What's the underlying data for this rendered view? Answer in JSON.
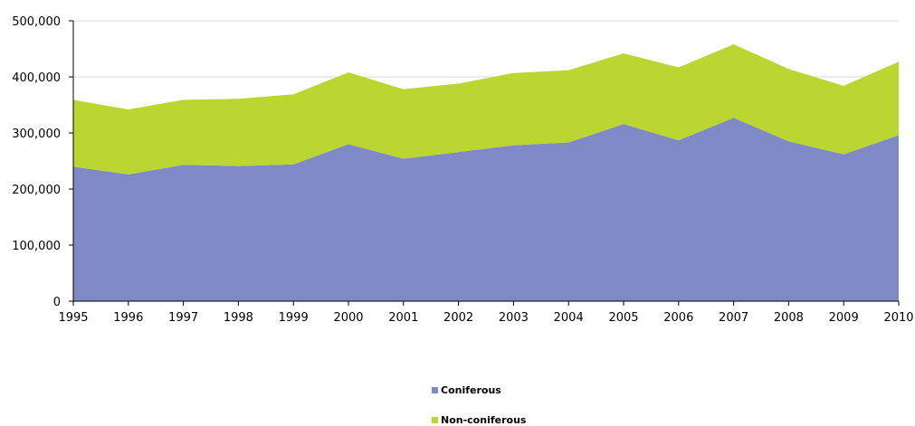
{
  "chart_data": {
    "type": "area",
    "stacked": true,
    "x": [
      "1995",
      "1996",
      "1997",
      "1998",
      "1999",
      "2000",
      "2001",
      "2002",
      "2003",
      "2004",
      "2005",
      "2006",
      "2007",
      "2008",
      "2009",
      "2010"
    ],
    "series": [
      {
        "name": "Coniferous",
        "color": "#7f89c5",
        "values": [
          240000,
          226000,
          243000,
          241000,
          244000,
          280000,
          254000,
          266000,
          278000,
          283000,
          316000,
          287000,
          327000,
          285000,
          262000,
          296000
        ]
      },
      {
        "name": "Non-coniferous",
        "color": "#bcd631",
        "values": [
          119000,
          116000,
          116000,
          120000,
          125000,
          128000,
          124000,
          122000,
          129000,
          129000,
          126000,
          130000,
          131000,
          129000,
          122000,
          131000
        ]
      }
    ],
    "y_ticks": [
      "0",
      "100,000",
      "200,000",
      "300,000",
      "400,000",
      "500,000"
    ],
    "ylim": [
      0,
      500000
    ],
    "grid": true,
    "legend_position": "bottom-center"
  }
}
